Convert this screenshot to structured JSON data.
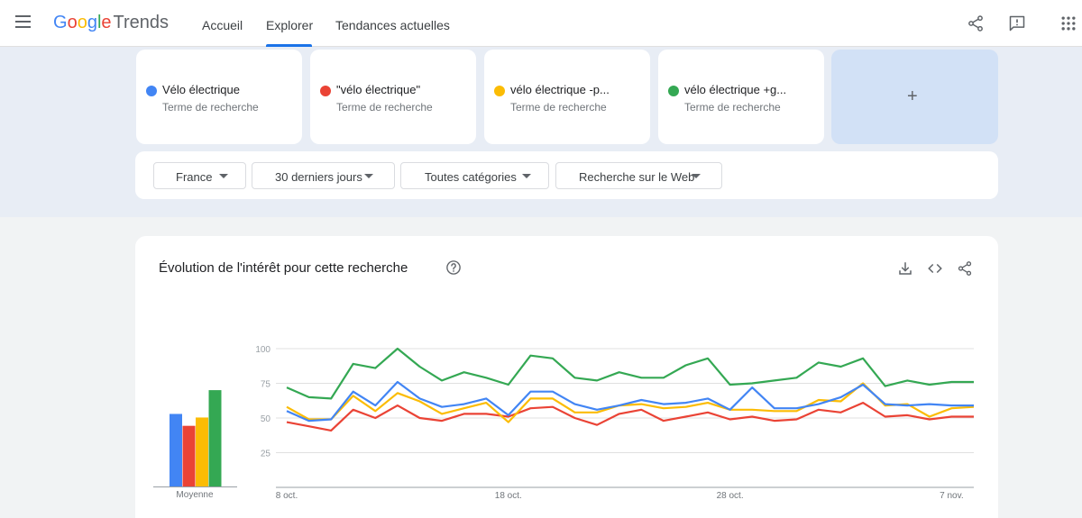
{
  "header": {
    "logo_google": [
      "G",
      "o",
      "o",
      "g",
      "l",
      "e"
    ],
    "logo_trends": "Trends",
    "nav": [
      {
        "label": "Accueil"
      },
      {
        "label": "Explorer"
      },
      {
        "label": "Tendances actuelles"
      }
    ],
    "icons": [
      "menu-icon",
      "share-icon",
      "feedback-icon",
      "apps-grid-icon"
    ]
  },
  "terms": [
    {
      "name": "Vélo électrique",
      "sub": "Terme de recherche",
      "color": "#4285f4"
    },
    {
      "name": "\"vélo électrique\"",
      "sub": "Terme de recherche",
      "color": "#ea4335"
    },
    {
      "name": "vélo électrique -p...",
      "sub": "Terme de recherche",
      "color": "#fbbc04"
    },
    {
      "name": "vélo électrique +g...",
      "sub": "Terme de recherche",
      "color": "#34a853"
    }
  ],
  "add_term": {
    "label": "+"
  },
  "filters": [
    {
      "label": "France"
    },
    {
      "label": "30 derniers jours"
    },
    {
      "label": "Toutes catégories"
    },
    {
      "label": "Recherche sur le Web"
    }
  ],
  "chart_card": {
    "title": "Évolution de l'intérêt pour cette recherche",
    "icons": [
      "help-icon",
      "download-icon",
      "embed-icon",
      "share-icon"
    ]
  },
  "chart_data": [
    {
      "type": "bar",
      "categories": [
        "Moyenne"
      ],
      "series": [
        {
          "color": "#4285f4",
          "values": [
            61
          ]
        },
        {
          "color": "#ea4335",
          "values": [
            51
          ]
        },
        {
          "color": "#fbbc04",
          "values": [
            58
          ]
        },
        {
          "color": "#34a853",
          "values": [
            81
          ]
        }
      ],
      "ylim": [
        0,
        100
      ]
    },
    {
      "type": "line",
      "x": [
        "8 oct.",
        "9 oct.",
        "10 oct.",
        "11 oct.",
        "12 oct.",
        "13 oct.",
        "14 oct.",
        "15 oct.",
        "16 oct.",
        "17 oct.",
        "18 oct.",
        "19 oct.",
        "20 oct.",
        "21 oct.",
        "22 oct.",
        "23 oct.",
        "24 oct.",
        "25 oct.",
        "26 oct.",
        "27 oct.",
        "28 oct.",
        "29 oct.",
        "30 oct.",
        "31 oct.",
        "1 nov.",
        "2 nov.",
        "3 nov.",
        "4 nov.",
        "5 nov.",
        "6 nov.",
        "7 nov.",
        "8 nov."
      ],
      "x_ticks": [
        "8 oct.",
        "18 oct.",
        "28 oct.",
        "7 nov."
      ],
      "y_ticks": [
        25,
        50,
        75,
        100
      ],
      "ylim": [
        0,
        100
      ],
      "grid": true,
      "series": [
        {
          "color": "#4285f4",
          "values": [
            55,
            48,
            49,
            69,
            59,
            76,
            64,
            58,
            60,
            64,
            52,
            69,
            69,
            60,
            56,
            59,
            63,
            60,
            61,
            64,
            56,
            72,
            57,
            57,
            60,
            65,
            74,
            60,
            59,
            60,
            59,
            59
          ]
        },
        {
          "color": "#ea4335",
          "values": [
            47,
            44,
            41,
            56,
            50,
            59,
            50,
            48,
            53,
            53,
            51,
            57,
            58,
            50,
            45,
            53,
            56,
            48,
            51,
            54,
            49,
            51,
            48,
            49,
            56,
            54,
            61,
            51,
            52,
            49,
            51,
            51
          ]
        },
        {
          "color": "#fbbc04",
          "values": [
            58,
            49,
            49,
            66,
            55,
            68,
            62,
            53,
            57,
            61,
            47,
            64,
            64,
            54,
            54,
            59,
            60,
            57,
            58,
            61,
            56,
            56,
            55,
            55,
            63,
            62,
            75,
            59,
            60,
            51,
            57,
            58
          ]
        },
        {
          "color": "#34a853",
          "values": [
            72,
            65,
            64,
            89,
            86,
            100,
            87,
            77,
            83,
            79,
            74,
            95,
            93,
            79,
            77,
            83,
            79,
            79,
            88,
            93,
            74,
            75,
            77,
            79,
            90,
            87,
            93,
            73,
            77,
            74,
            76,
            76
          ]
        }
      ]
    }
  ]
}
